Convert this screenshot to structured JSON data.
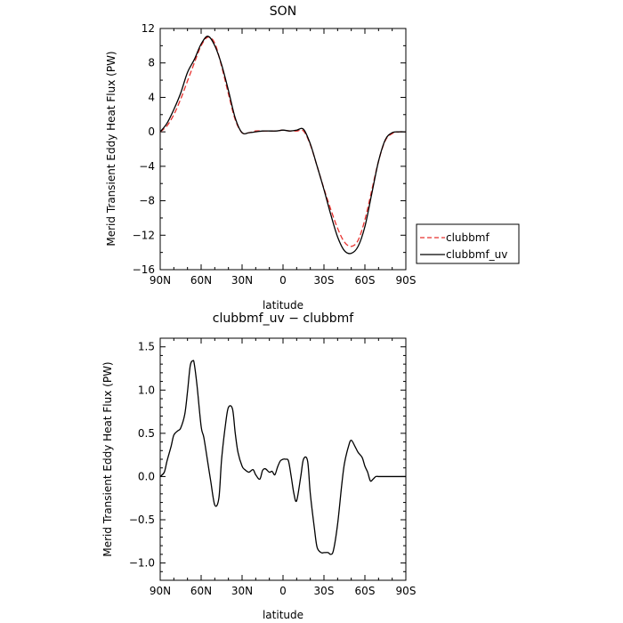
{
  "chart_data": [
    {
      "type": "line",
      "title": "SON",
      "xlabel": "latitude",
      "ylabel": "Merid Transient Eddy Heat Flux (PW)",
      "xlim": [
        -90,
        90
      ],
      "ylim": [
        -16,
        12
      ],
      "xticks": [
        -90,
        -60,
        -30,
        0,
        30,
        60,
        90
      ],
      "xticklabels": [
        "90N",
        "60N",
        "30N",
        "0",
        "30S",
        "60S",
        "90S"
      ],
      "yticks": [
        -16,
        -12,
        -8,
        -4,
        0,
        4,
        8,
        12
      ],
      "yticklabels": [
        "−16",
        "−12",
        "−8",
        "−4",
        "0",
        "4",
        "8",
        "12"
      ],
      "legend_position": "right",
      "series": [
        {
          "name": "clubbmf",
          "color": "#e8322f",
          "dash": "dashed",
          "x": [
            -90,
            -85,
            -80,
            -75,
            -70,
            -65,
            -60,
            -55,
            -50,
            -45,
            -40,
            -35,
            -30,
            -25,
            -20,
            -15,
            -10,
            -5,
            0,
            5,
            10,
            15,
            20,
            25,
            30,
            35,
            40,
            45,
            50,
            55,
            60,
            65,
            70,
            75,
            80,
            85,
            90
          ],
          "y": [
            0,
            0.7,
            2.0,
            3.8,
            5.9,
            8.0,
            10.0,
            11.0,
            10.3,
            7.6,
            4.4,
            1.4,
            -0.1,
            -0.1,
            0.1,
            0.1,
            0.1,
            0.1,
            0.2,
            0.1,
            0.1,
            0.1,
            -1.5,
            -4.0,
            -6.6,
            -9.0,
            -11.2,
            -12.8,
            -13.3,
            -12.6,
            -10.2,
            -6.8,
            -3.4,
            -1.0,
            -0.2,
            0,
            0
          ]
        },
        {
          "name": "clubbmf_uv",
          "color": "#000000",
          "dash": "solid",
          "x": [
            -90,
            -85,
            -80,
            -75,
            -70,
            -65,
            -60,
            -55,
            -50,
            -45,
            -40,
            -35,
            -30,
            -25,
            -20,
            -15,
            -10,
            -5,
            0,
            5,
            10,
            15,
            20,
            25,
            30,
            35,
            40,
            45,
            50,
            55,
            60,
            65,
            70,
            75,
            80,
            85,
            90
          ],
          "y": [
            0,
            1.0,
            2.6,
            4.5,
            6.9,
            8.4,
            10.2,
            11.1,
            10.0,
            7.8,
            4.8,
            1.6,
            -0.1,
            -0.1,
            0.0,
            0.1,
            0.1,
            0.1,
            0.2,
            0.1,
            0.2,
            0.3,
            -1.4,
            -4.0,
            -6.7,
            -9.6,
            -12.2,
            -13.8,
            -14.1,
            -13.3,
            -11.0,
            -7.2,
            -3.4,
            -0.9,
            -0.1,
            0,
            0
          ]
        }
      ]
    },
    {
      "type": "line",
      "title": "clubbmf_uv − clubbmf",
      "xlabel": "latitude",
      "ylabel": "Merid Transient Eddy Heat Flux (PW)",
      "xlim": [
        -90,
        90
      ],
      "ylim": [
        -1.2,
        1.6
      ],
      "xticks": [
        -90,
        -60,
        -30,
        0,
        30,
        60,
        90
      ],
      "xticklabels": [
        "90N",
        "60N",
        "30N",
        "0",
        "30S",
        "60S",
        "90S"
      ],
      "yticks": [
        -1.0,
        -0.5,
        0.0,
        0.5,
        1.0,
        1.5
      ],
      "yticklabels": [
        "−1.0",
        "−0.5",
        "0.0",
        "0.5",
        "1.0",
        "1.5"
      ],
      "series": [
        {
          "color": "#000000",
          "dash": "solid",
          "x": [
            -90,
            -87,
            -85,
            -82,
            -80,
            -77,
            -75,
            -72,
            -70,
            -68,
            -66,
            -65,
            -63,
            -60,
            -58,
            -55,
            -53,
            -50,
            -47,
            -45,
            -42,
            -40,
            -37,
            -35,
            -33,
            -30,
            -28,
            -25,
            -22,
            -20,
            -17,
            -15,
            -13,
            -10,
            -8,
            -6,
            -4,
            -2,
            0,
            2,
            4,
            6,
            8,
            10,
            13,
            15,
            18,
            20,
            23,
            25,
            28,
            30,
            33,
            35,
            37,
            40,
            43,
            45,
            48,
            50,
            53,
            55,
            58,
            60,
            62,
            64,
            66,
            68,
            70,
            72,
            75,
            78,
            80,
            83,
            85,
            87,
            90
          ],
          "y": [
            0.0,
            0.05,
            0.18,
            0.35,
            0.48,
            0.53,
            0.56,
            0.72,
            0.98,
            1.28,
            1.34,
            1.3,
            1.05,
            0.58,
            0.45,
            0.15,
            -0.05,
            -0.33,
            -0.25,
            0.2,
            0.62,
            0.8,
            0.78,
            0.5,
            0.28,
            0.12,
            0.08,
            0.05,
            0.08,
            0.02,
            -0.03,
            0.07,
            0.09,
            0.05,
            0.06,
            0.02,
            0.11,
            0.18,
            0.2,
            0.2,
            0.18,
            0.0,
            -0.2,
            -0.28,
            0.0,
            0.2,
            0.18,
            -0.2,
            -0.6,
            -0.82,
            -0.88,
            -0.88,
            -0.88,
            -0.9,
            -0.85,
            -0.55,
            -0.1,
            0.15,
            0.35,
            0.42,
            0.34,
            0.28,
            0.22,
            0.12,
            0.05,
            -0.05,
            -0.03,
            0.0,
            0.0,
            0.0,
            0.0,
            0.0,
            0.0,
            0.0,
            0.0,
            0.0,
            0.0
          ]
        }
      ]
    }
  ],
  "legend": {
    "items": [
      "clubbmf",
      "clubbmf_uv"
    ]
  }
}
